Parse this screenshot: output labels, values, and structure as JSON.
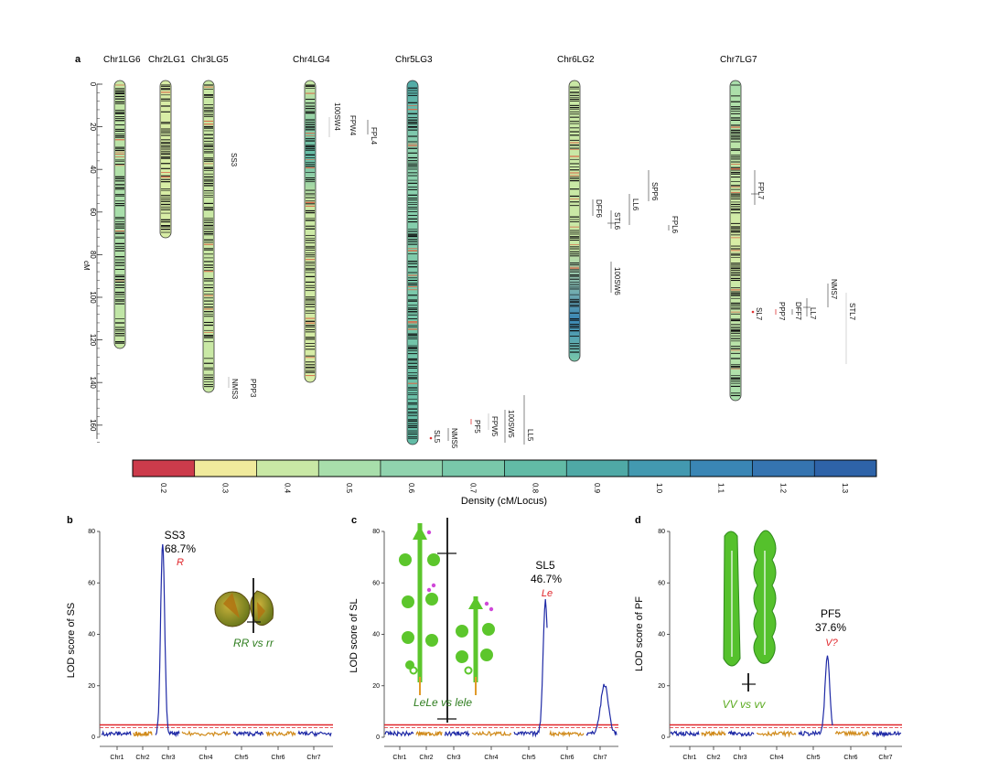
{
  "panel_labels": {
    "a": "a",
    "b": "b",
    "c": "c",
    "d": "d"
  },
  "colorbar": {
    "title": "Density (cM/Locus)",
    "ticks": [
      "0.2",
      "0.3",
      "0.4",
      "0.5",
      "0.6",
      "0.7",
      "0.8",
      "0.9",
      "1.0",
      "1.1",
      "1.2",
      "1.3"
    ],
    "colors": [
      "#cc3b4b",
      "#f0ea9c",
      "#c9e8a5",
      "#a8deab",
      "#90d3ae",
      "#79c8aa",
      "#62bba6",
      "#4fa9a6",
      "#4399b0",
      "#3a86b5",
      "#3574b0",
      "#2e63a8"
    ]
  },
  "map": {
    "ylabel": "cM",
    "yticks": [
      "0",
      "20",
      "40",
      "60",
      "80",
      "100",
      "120",
      "140",
      "160"
    ],
    "chromosomes": [
      {
        "name": "Chr1LG6",
        "length": 126
      },
      {
        "name": "Chr2LG1",
        "length": 72
      },
      {
        "name": "Chr3LG5",
        "length": 147
      },
      {
        "name": "Chr4LG4",
        "length": 141
      },
      {
        "name": "Chr5LG3",
        "length": 170
      },
      {
        "name": "Chr6LG2",
        "length": 131
      },
      {
        "name": "Chr7LG7",
        "length": 150
      }
    ],
    "qtl_labels": [
      "SS3",
      "PPP3",
      "NMS3",
      "FPL4",
      "FPW4",
      "100SW4",
      "SL5",
      "NMS5",
      "PF5",
      "FPW5",
      "100SW5",
      "LL5",
      "SPP6",
      "LL6",
      "STL6",
      "DFF6",
      "FPL6",
      "100SW6",
      "FPL7",
      "NMS7",
      "STL7",
      "LL7",
      "DFF7",
      "PPP7",
      "SL7"
    ]
  },
  "chart_data": [
    {
      "type": "line",
      "panel": "b",
      "ylabel": "LOD score of SS",
      "yticks": [
        "0",
        "20",
        "40",
        "60",
        "80"
      ],
      "ylim": [
        0,
        80
      ],
      "categories": [
        "Chr1",
        "Chr2",
        "Chr3",
        "Chr4",
        "Chr5",
        "Chr6",
        "Chr7"
      ],
      "threshold": 4.8,
      "peak": {
        "trait": "SS3",
        "pve": "68.7%",
        "gene": "R",
        "lod": 78,
        "chromosome": "Chr3"
      },
      "inset_caption": "RR vs rr",
      "series_colors": [
        "#1f2aa6",
        "#d08a1a"
      ]
    },
    {
      "type": "line",
      "panel": "c",
      "ylabel": "LOD score of SL",
      "yticks": [
        "0",
        "20",
        "40",
        "60",
        "80"
      ],
      "ylim": [
        0,
        80
      ],
      "categories": [
        "Chr1",
        "Chr2",
        "Chr3",
        "Chr4",
        "Chr5",
        "Chr6",
        "Chr7"
      ],
      "threshold": 4.8,
      "peak": {
        "trait": "SL5",
        "pve": "46.7%",
        "gene": "Le",
        "lod": 54,
        "chromosome": "Chr5"
      },
      "secondary_peak": {
        "lod": 22,
        "chromosome": "Chr7"
      },
      "inset_caption": "LeLe vs lele",
      "series_colors": [
        "#1f2aa6",
        "#d08a1a"
      ]
    },
    {
      "type": "line",
      "panel": "d",
      "ylabel": "LOD score of PF",
      "yticks": [
        "0",
        "20",
        "40",
        "60",
        "80"
      ],
      "ylim": [
        0,
        80
      ],
      "categories": [
        "Chr1",
        "Chr2",
        "Chr3",
        "Chr4",
        "Chr5",
        "Chr6",
        "Chr7"
      ],
      "threshold": 4.8,
      "peak": {
        "trait": "PF5",
        "pve": "37.6%",
        "gene": "V?",
        "lod": 32,
        "chromosome": "Chr5"
      },
      "inset_caption": "VV vs vv",
      "series_colors": [
        "#1f2aa6",
        "#d08a1a"
      ]
    }
  ]
}
